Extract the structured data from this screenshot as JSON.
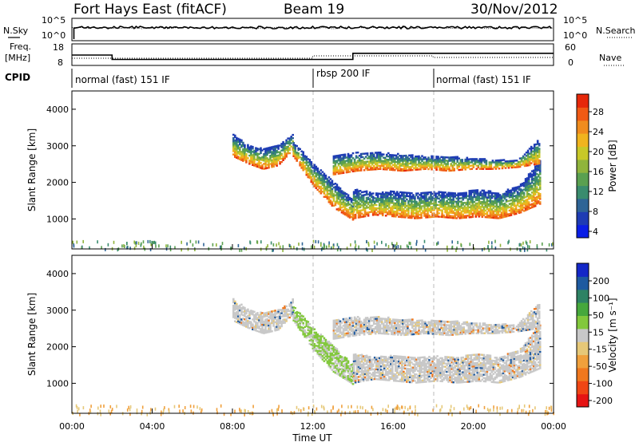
{
  "header": {
    "station": "Fort Hays East (fitACF)",
    "beam": "Beam 19",
    "date": "30/Nov/2012"
  },
  "top_panels": {
    "nsky_label": "N.Sky",
    "nsky_ticks": [
      "10^5",
      "10^0"
    ],
    "nsearch_label": "N.Search",
    "nsearch_ticks": [
      "10^5",
      "10^0"
    ],
    "freq_label_1": "Freq.",
    "freq_label_2": "[MHz]",
    "freq_ticks": [
      "18",
      "8"
    ],
    "nave_label": "Nave",
    "nave_ticks": [
      "60",
      "0"
    ],
    "cpid_label": "CPID",
    "cpid_segments": [
      {
        "label": "normal (fast) 151 IF",
        "start": 0
      },
      {
        "label": "rbsp 200 IF",
        "start": 12
      },
      {
        "label": "normal (fast) 151 IF",
        "start": 18
      }
    ]
  },
  "colorbars": {
    "power": {
      "label": "Power [dB]",
      "ticks": [
        "28",
        "24",
        "20",
        "16",
        "12",
        "8",
        "4"
      ],
      "colors": [
        "#0a1ee6",
        "#1e3cb4",
        "#2e6496",
        "#3a8c6e",
        "#5aa050",
        "#90b43c",
        "#c8c828",
        "#f0b41e",
        "#f08c1e",
        "#f05a14",
        "#e6280a"
      ]
    },
    "velocity": {
      "label": "Velocity [m s⁻¹]",
      "ticks": [
        "200",
        "100",
        "50",
        "15",
        "-15",
        "-50",
        "-100",
        "-200"
      ],
      "colors": [
        "#1428c8",
        "#1e5aa0",
        "#2e8264",
        "#46a83c",
        "#82c83c",
        "#c8c8c8",
        "#e6c878",
        "#f0a03c",
        "#f0781e",
        "#f04614",
        "#e61414"
      ]
    }
  },
  "chart_data": {
    "type": "heatmap",
    "x": {
      "label": "Time UT",
      "ticks": [
        "00:00",
        "04:00",
        "08:00",
        "12:00",
        "16:00",
        "20:00",
        "00:00"
      ],
      "range_hours": [
        0,
        24
      ]
    },
    "y": {
      "label": "Slant Range [km]",
      "ticks": [
        1000,
        2000,
        3000,
        4000
      ],
      "range": [
        180,
        4500
      ]
    },
    "mode_change_times_hours": [
      12,
      18
    ],
    "freq_mhz": [
      {
        "from": 0,
        "to": 2,
        "value": 13
      },
      {
        "from": 2,
        "to": 14,
        "value": 10.5
      },
      {
        "from": 14,
        "to": 24,
        "value": 14
      }
    ],
    "echo_bands": [
      {
        "name": "",
        "start": 8,
        "end": 11,
        "lower": [
          2700,
          2500,
          2350,
          2450,
          2900
        ],
        "upper": [
          3300,
          3000,
          2900,
          3000,
          3300
        ]
      },
      {
        "name": "",
        "start": 11,
        "end": 14,
        "lower": [
          2700,
          1900,
          1300,
          950
        ],
        "upper": [
          3100,
          2500,
          2000,
          1500
        ]
      },
      {
        "name": "",
        "start": 14,
        "end": 23.3,
        "lower": [
          1000,
          1100,
          1050,
          1000,
          1050,
          1000,
          1050,
          1000,
          1150,
          1400
        ],
        "upper": [
          1800,
          1700,
          1750,
          1700,
          1750,
          1700,
          1800,
          1700,
          1900,
          2600
        ]
      },
      {
        "name": "",
        "start": 13,
        "end": 23.3,
        "lower": [
          2200,
          2300,
          2350,
          2300,
          2350,
          2300,
          2350,
          2350,
          2400,
          2500
        ],
        "upper": [
          2700,
          2800,
          2800,
          2750,
          2700,
          2700,
          2650,
          2600,
          2600,
          3200
        ]
      }
    ]
  }
}
